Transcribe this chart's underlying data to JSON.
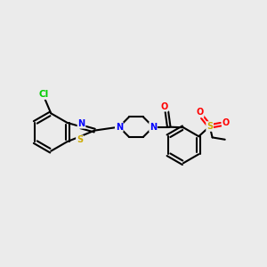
{
  "bg_color": "#ebebeb",
  "atom_colors": {
    "C": "#000000",
    "N": "#0000ff",
    "O": "#ff0000",
    "S": "#ccaa00",
    "Cl": "#00cc00"
  },
  "bond_color": "#000000",
  "figsize": [
    3.0,
    3.0
  ],
  "dpi": 100,
  "lw": 1.5,
  "fs": 7.0,
  "xlim": [
    0,
    10
  ],
  "ylim": [
    0,
    10
  ]
}
